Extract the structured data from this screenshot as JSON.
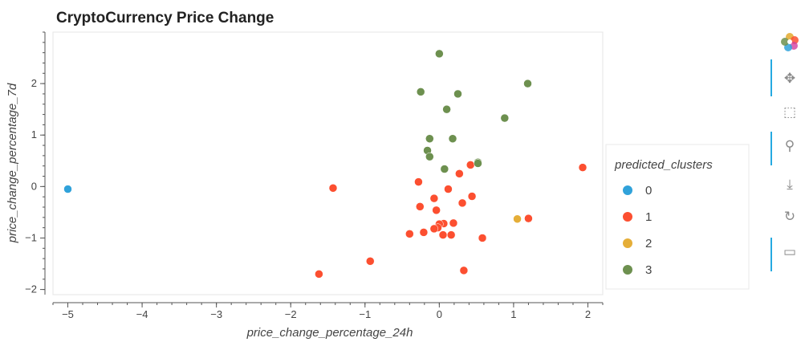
{
  "chart_data": {
    "type": "scatter",
    "title": "CryptoCurrency Price Change",
    "xlabel": "price_change_percentage_24h",
    "ylabel": "price_change_percentage_7d",
    "xlim": [
      -5.2,
      2.2
    ],
    "ylim": [
      -2.1,
      3.0
    ],
    "x_ticks": [
      -5,
      -4,
      -3,
      -2,
      -1,
      0,
      1,
      2
    ],
    "y_ticks": [
      -2,
      -1,
      0,
      1,
      2
    ],
    "grid": false,
    "legend_title": "predicted_clusters",
    "legend_position": "right",
    "series": [
      {
        "name": "0",
        "color": "#30a2da",
        "points": [
          [
            -5.0,
            -0.05
          ]
        ]
      },
      {
        "name": "1",
        "color": "#fc4f30",
        "points": [
          [
            1.93,
            0.37
          ],
          [
            1.2,
            -0.62
          ],
          [
            0.58,
            -1.0
          ],
          [
            0.42,
            0.42
          ],
          [
            0.44,
            -0.19
          ],
          [
            0.27,
            0.25
          ],
          [
            0.31,
            -0.32
          ],
          [
            0.33,
            -1.63
          ],
          [
            0.19,
            -0.71
          ],
          [
            0.16,
            -0.94
          ],
          [
            0.12,
            -0.05
          ],
          [
            0.06,
            -0.72
          ],
          [
            0.0,
            -0.73
          ],
          [
            0.05,
            -0.94
          ],
          [
            -0.02,
            -0.8
          ],
          [
            -0.07,
            -0.82
          ],
          [
            -0.04,
            -0.46
          ],
          [
            -0.07,
            -0.23
          ],
          [
            -0.21,
            -0.89
          ],
          [
            -0.28,
            0.09
          ],
          [
            -0.26,
            -0.39
          ],
          [
            -0.4,
            -0.92
          ],
          [
            -0.93,
            -1.45
          ],
          [
            -1.43,
            -0.03
          ],
          [
            -1.62,
            -1.7
          ]
        ]
      },
      {
        "name": "2",
        "color": "#e5ae38",
        "points": [
          [
            1.05,
            -0.63
          ]
        ]
      },
      {
        "name": "3",
        "color": "#6d904f",
        "points": [
          [
            0.0,
            2.58
          ],
          [
            -0.25,
            1.84
          ],
          [
            0.25,
            1.8
          ],
          [
            0.1,
            1.5
          ],
          [
            1.19,
            2.0
          ],
          [
            0.88,
            1.33
          ],
          [
            -0.13,
            0.93
          ],
          [
            0.18,
            0.93
          ],
          [
            -0.16,
            0.7
          ],
          [
            -0.13,
            0.58
          ],
          [
            0.07,
            0.34
          ],
          [
            0.52,
            0.47
          ],
          [
            0.52,
            0.45
          ]
        ]
      }
    ]
  },
  "toolbar": {
    "logo_icon": "bokeh-logo-icon",
    "items": [
      {
        "name": "pan-icon",
        "glyph": "✥"
      },
      {
        "name": "box-zoom-icon",
        "glyph": "⬚"
      },
      {
        "name": "wheel-zoom-icon",
        "glyph": "⚲"
      },
      {
        "name": "save-icon",
        "glyph": "⤓"
      },
      {
        "name": "reset-icon",
        "glyph": "↻"
      },
      {
        "name": "hover-icon",
        "glyph": "▭"
      }
    ]
  }
}
